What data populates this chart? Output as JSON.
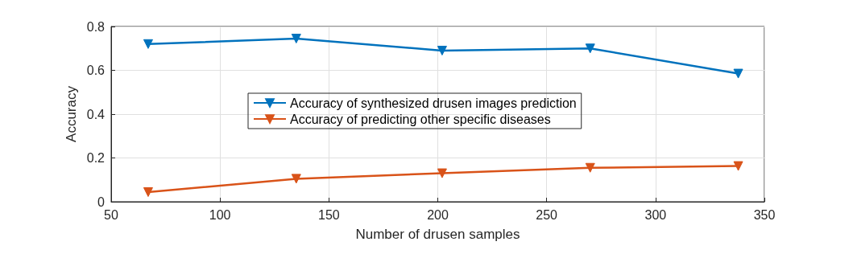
{
  "chart_data": {
    "type": "line",
    "xlabel": "Number of drusen samples",
    "ylabel": "Accuracy",
    "x": [
      67,
      135,
      202,
      270,
      338
    ],
    "series": [
      {
        "name": "Accuracy of synthesized drusen images prediction",
        "color": "#0072bd",
        "values": [
          0.72,
          0.745,
          0.69,
          0.7,
          0.585
        ]
      },
      {
        "name": "Accuracy of predicting other specific diseases",
        "color": "#d95319",
        "values": [
          0.044,
          0.105,
          0.13,
          0.155,
          0.163
        ]
      }
    ],
    "xlim": [
      50,
      350
    ],
    "xticks": [
      50,
      100,
      150,
      200,
      250,
      300,
      350
    ],
    "ylim": [
      0,
      0.8
    ],
    "yticks": [
      0,
      0.2,
      0.4,
      0.6,
      0.8
    ],
    "grid": true,
    "legend": "center",
    "marker": "triangle",
    "line_style": "solid"
  }
}
